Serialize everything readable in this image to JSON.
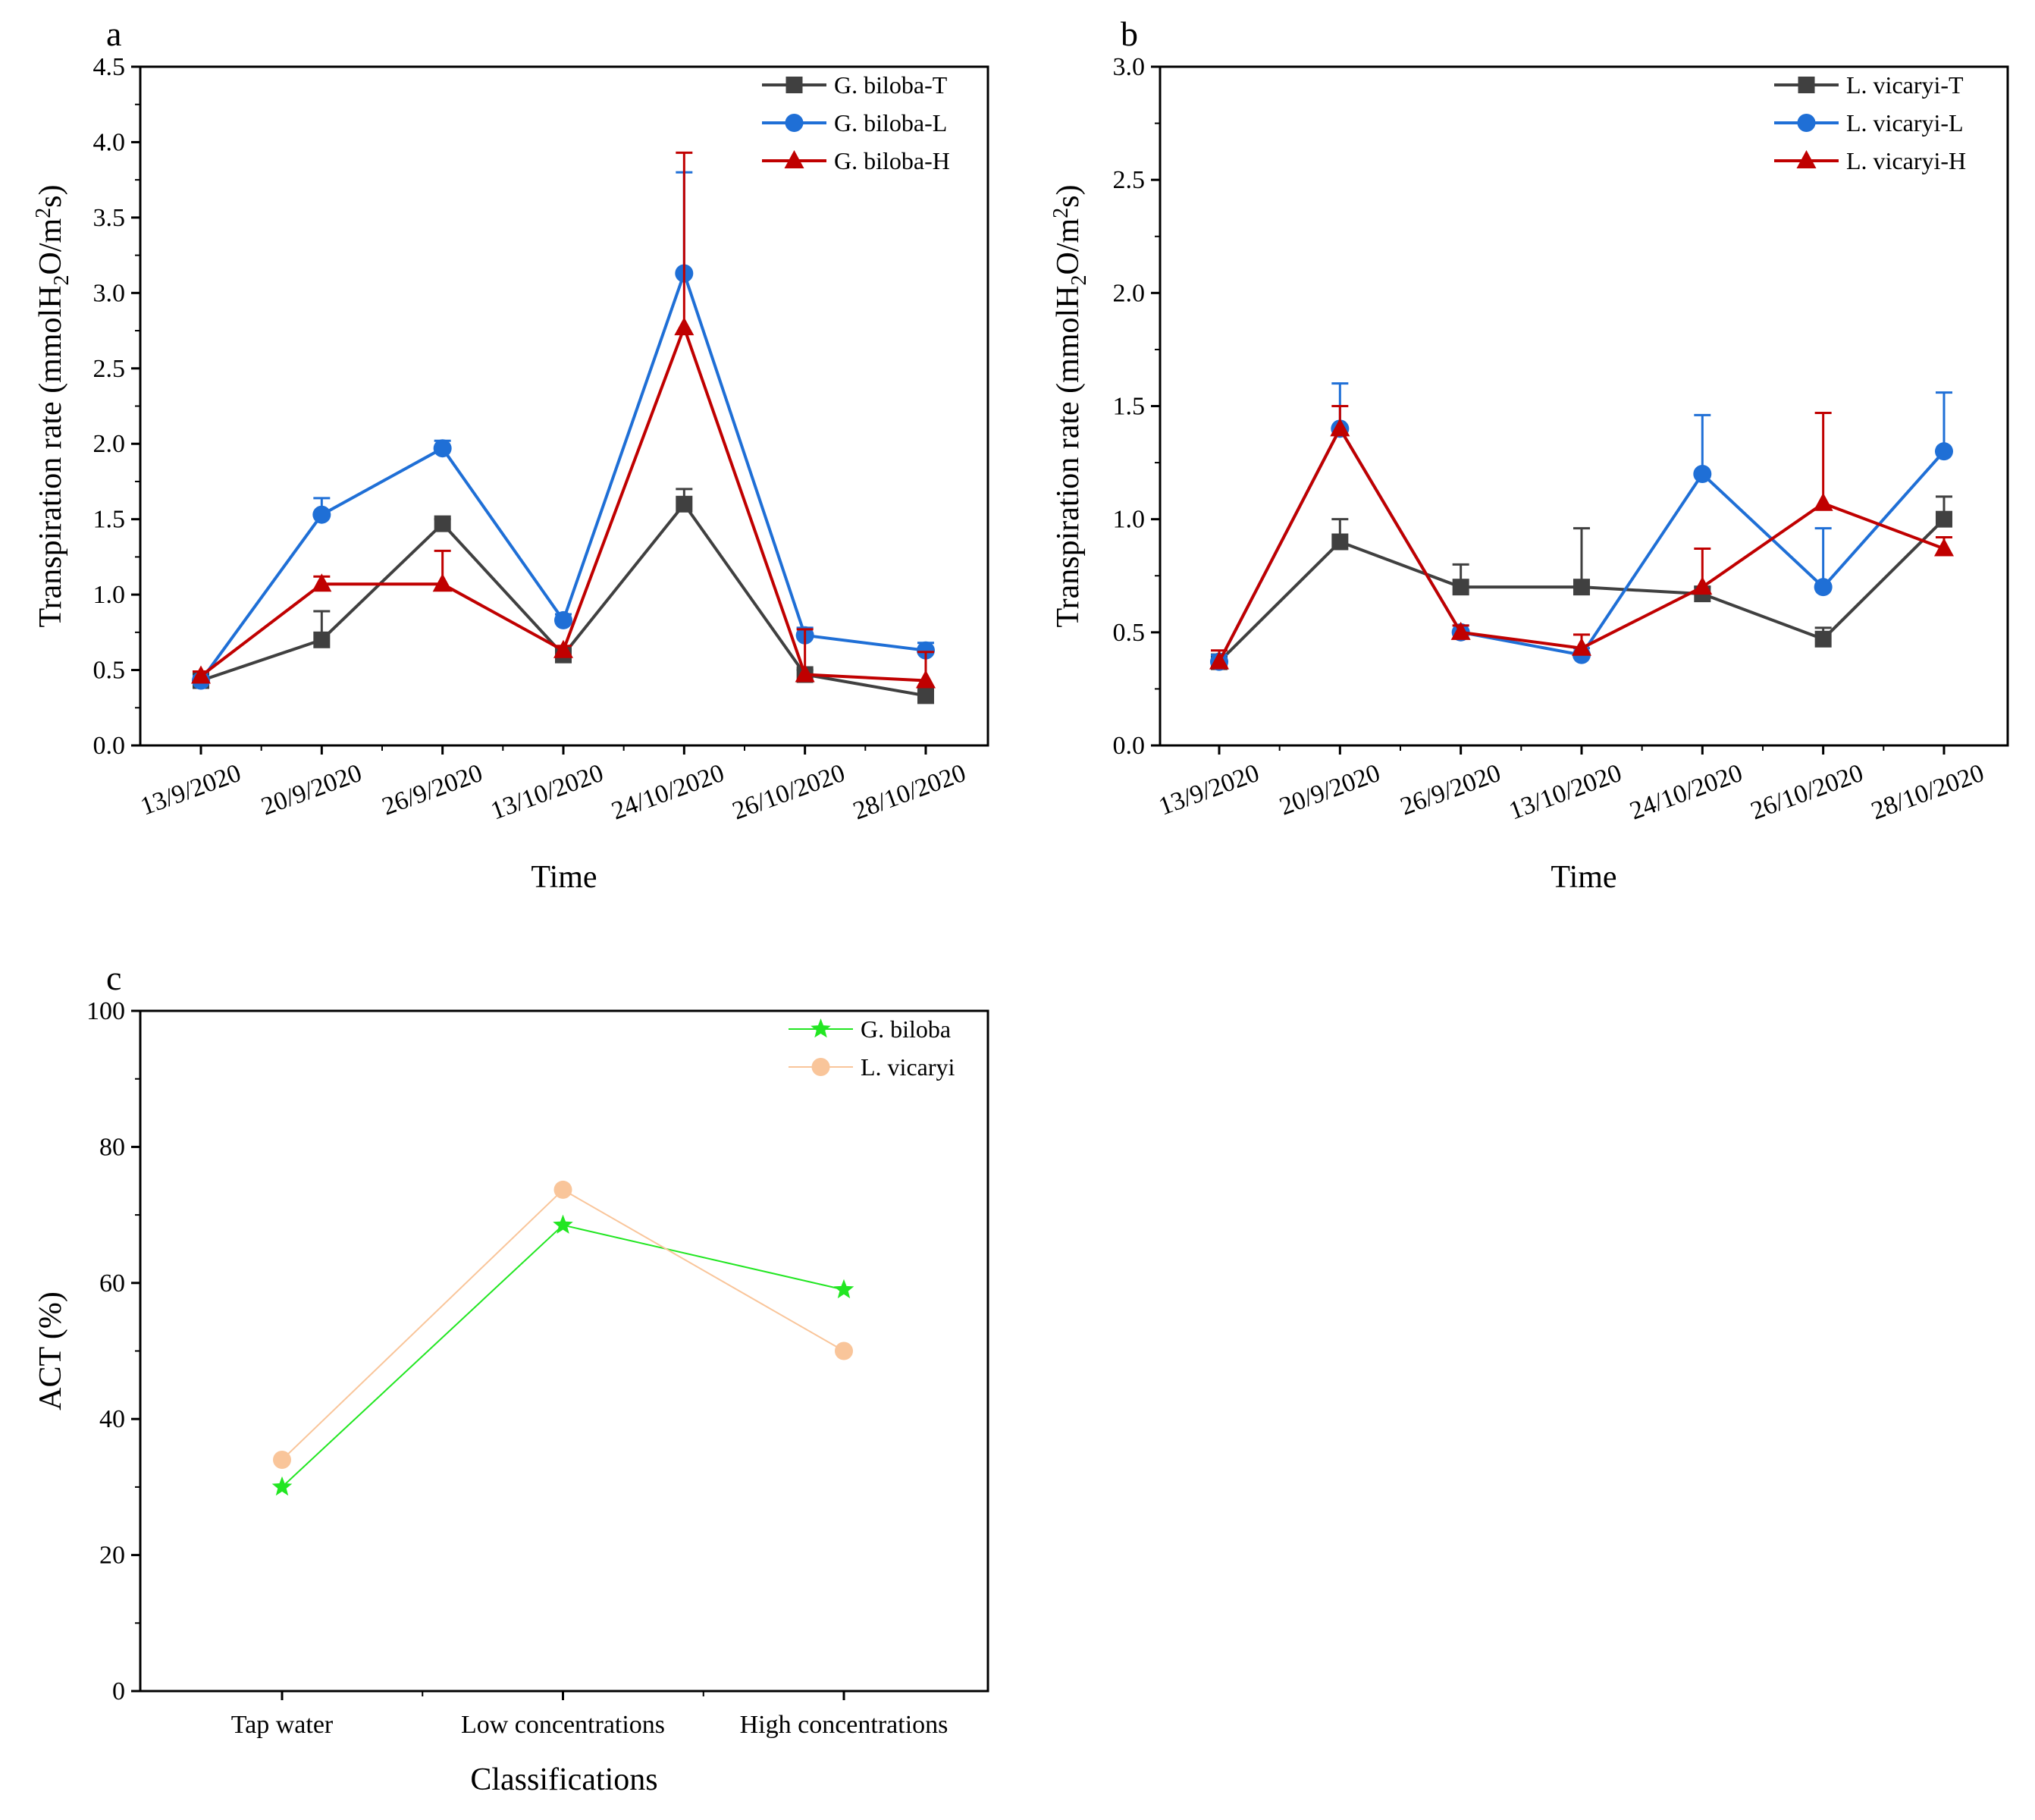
{
  "chart_data": [
    {
      "panel": "a",
      "type": "line",
      "xlabel": "Time",
      "ylabel_main": "Transpiration rate (mmolH",
      "ylabel_sub1": "2",
      "ylabel_mid": "O/m",
      "ylabel_sup": "2",
      "ylabel_end": "s)",
      "ylim": [
        0,
        4.5
      ],
      "yticks": [
        "0.0",
        "0.5",
        "1.0",
        "1.5",
        "2.0",
        "2.5",
        "3.0",
        "3.5",
        "4.0",
        "4.5"
      ],
      "categories": [
        "13/9/2020",
        "20/9/2020",
        "26/9/2020",
        "13/10/2020",
        "24/10/2020",
        "26/10/2020",
        "28/10/2020"
      ],
      "legend_position": "top-right",
      "series": [
        {
          "name": "G. biloba-T",
          "color": "#404040",
          "marker": "square",
          "values": [
            0.43,
            0.7,
            1.47,
            0.6,
            1.6,
            0.47,
            0.33
          ],
          "errors": [
            0.03,
            0.19,
            0.03,
            0.03,
            0.1,
            0.03,
            0.03
          ]
        },
        {
          "name": "G. biloba-L",
          "color": "#1f6fd6",
          "marker": "circle",
          "values": [
            0.43,
            1.53,
            1.97,
            0.83,
            3.13,
            0.73,
            0.63
          ],
          "errors": [
            0.03,
            0.11,
            0.05,
            0.04,
            0.67,
            0.05,
            0.05
          ]
        },
        {
          "name": "G. biloba-H",
          "color": "#c00000",
          "marker": "triangle",
          "values": [
            0.46,
            1.07,
            1.07,
            0.63,
            2.77,
            0.47,
            0.43
          ],
          "errors": [
            0.03,
            0.05,
            0.22,
            0.03,
            1.16,
            0.3,
            0.19
          ]
        }
      ]
    },
    {
      "panel": "b",
      "type": "line",
      "xlabel": "Time",
      "ylabel_main": "Transpiration rate (mmolH",
      "ylabel_sub1": "2",
      "ylabel_mid": "O/m",
      "ylabel_sup": "2",
      "ylabel_end": "s)",
      "ylim": [
        0,
        3.0
      ],
      "yticks": [
        "0.0",
        "0.5",
        "1.0",
        "1.5",
        "2.0",
        "2.5",
        "3.0"
      ],
      "categories": [
        "13/9/2020",
        "20/9/2020",
        "26/9/2020",
        "13/10/2020",
        "24/10/2020",
        "26/10/2020",
        "28/10/2020"
      ],
      "legend_position": "top-right",
      "series": [
        {
          "name": "L. vicaryi-T",
          "color": "#404040",
          "marker": "square",
          "values": [
            0.37,
            0.9,
            0.7,
            0.7,
            0.67,
            0.47,
            1.0
          ],
          "errors": [
            0.03,
            0.1,
            0.1,
            0.26,
            0.03,
            0.05,
            0.1
          ]
        },
        {
          "name": "L. vicaryi-L",
          "color": "#1f6fd6",
          "marker": "circle",
          "values": [
            0.37,
            1.4,
            0.5,
            0.4,
            1.2,
            0.7,
            1.3
          ],
          "errors": [
            0.03,
            0.2,
            0.03,
            0.03,
            0.26,
            0.26,
            0.26
          ]
        },
        {
          "name": "L. vicaryi-H",
          "color": "#c00000",
          "marker": "triangle",
          "values": [
            0.37,
            1.4,
            0.5,
            0.43,
            0.7,
            1.07,
            0.87
          ],
          "errors": [
            0.05,
            0.1,
            0.03,
            0.06,
            0.17,
            0.4,
            0.05
          ]
        }
      ]
    },
    {
      "panel": "c",
      "type": "line",
      "xlabel": "Classifications",
      "ylabel": "ACT (%)",
      "ylim": [
        0,
        100
      ],
      "yticks": [
        "0",
        "20",
        "40",
        "60",
        "80",
        "100"
      ],
      "categories": [
        "Tap water",
        "Low concentrations",
        "High concentrations"
      ],
      "legend_position": "top-right",
      "series": [
        {
          "name": "G. biloba",
          "color": "#22e622",
          "marker": "star",
          "values": [
            30,
            68.5,
            59
          ]
        },
        {
          "name": "L. vicaryi",
          "color": "#f9c59a",
          "marker": "circle",
          "values": [
            34,
            73.7,
            50
          ]
        }
      ]
    }
  ]
}
